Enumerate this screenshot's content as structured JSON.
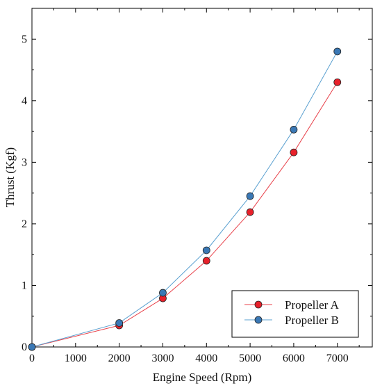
{
  "chart_data": {
    "type": "line",
    "title": "",
    "xlabel": "Engine Speed (Rpm)",
    "ylabel": "Thrust (Kgf)",
    "xlim": [
      0,
      7800
    ],
    "ylim": [
      0,
      5.5
    ],
    "x_ticks": [
      0,
      1000,
      2000,
      3000,
      4000,
      5000,
      6000,
      7000
    ],
    "x_tick_labels": [
      "0",
      "1000",
      "2000",
      "3000",
      "4000",
      "5000",
      "6000",
      "7000"
    ],
    "y_ticks": [
      0,
      1,
      2,
      3,
      4,
      5
    ],
    "y_tick_labels": [
      "0",
      "1",
      "2",
      "3",
      "4",
      "5"
    ],
    "grid": false,
    "legend_position": "bottom-right",
    "x": [
      0,
      2000,
      3000,
      4000,
      5000,
      6000,
      7000
    ],
    "series": [
      {
        "name": "Propeller A",
        "color": "#e8202a",
        "line_color": "#e8414a",
        "values": [
          0,
          0.35,
          0.79,
          1.4,
          2.19,
          3.16,
          4.3
        ]
      },
      {
        "name": "Propeller B",
        "color": "#3a78b5",
        "line_color": "#5aa0d0",
        "values": [
          0,
          0.39,
          0.88,
          1.57,
          2.45,
          3.53,
          4.8
        ]
      }
    ]
  }
}
